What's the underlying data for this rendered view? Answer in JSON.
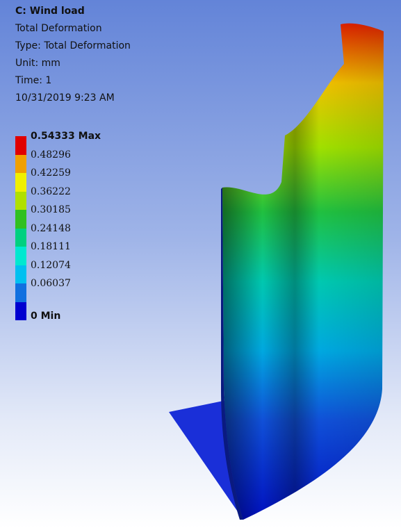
{
  "header": {
    "lines": [
      "C: Wind load",
      "Total Deformation",
      "Type: Total Deformation",
      "Unit: mm",
      "Time: 1",
      "10/31/2019 9:23 AM"
    ]
  },
  "legend": {
    "labels": [
      "0.54333 Max",
      "0.48296",
      "0.42259",
      "0.36222",
      "0.30185",
      "0.24148",
      "0.18111",
      "0.12074",
      "0.06037",
      "0 Min"
    ],
    "colors": [
      "#e00000",
      "#f0a000",
      "#f0f000",
      "#b0e000",
      "#30c020",
      "#00d080",
      "#00e8d0",
      "#00c0f0",
      "#1070e0",
      "#0000d0"
    ]
  }
}
